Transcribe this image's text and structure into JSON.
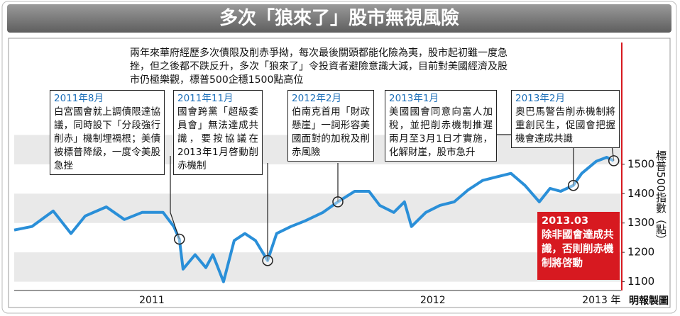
{
  "title": "多次「狼來了」股市無視風險",
  "intro": "兩年來華府經歷多次債限及削赤爭拗，每次最後關頭都能化險為夷，股市起初雖一度急挫，但之後都不跌反升，多次「狼來了」令投資者避險意識大減，目前對美國經濟及股市仍極樂觀，標普500企穩1500點高位",
  "source": "明報製圖",
  "chart_data": {
    "type": "line",
    "y_label": "標普500指數（點）",
    "x": [
      2011.01,
      2011.073,
      2011.149,
      2011.212,
      2011.263,
      2011.338,
      2011.402,
      2011.465,
      2011.54,
      2011.578,
      2011.598,
      2011.611,
      2011.654,
      2011.692,
      2011.717,
      2011.755,
      2011.793,
      2011.831,
      2011.869,
      2011.912,
      2011.944,
      2011.995,
      2012.045,
      2012.109,
      2012.162,
      2012.222,
      2012.273,
      2012.311,
      2012.361,
      2012.399,
      2012.424,
      2012.475,
      2012.525,
      2012.576,
      2012.626,
      2012.677,
      2012.727,
      2012.778,
      2012.828,
      2012.879,
      2012.917,
      2012.955,
      2013.0,
      2013.03,
      2013.081,
      2013.119,
      2013.144
    ],
    "series": [
      {
        "color": "#2a8fd8",
        "values": [
          1276,
          1288,
          1341,
          1264,
          1324,
          1355,
          1312,
          1336,
          1336,
          1288,
          1245,
          1143,
          1192,
          1148,
          1192,
          1100,
          1240,
          1264,
          1240,
          1172,
          1264,
          1288,
          1307,
          1336,
          1372,
          1408,
          1408,
          1360,
          1336,
          1372,
          1288,
          1336,
          1360,
          1372,
          1413,
          1445,
          1457,
          1469,
          1428,
          1372,
          1418,
          1408,
          1428,
          1469,
          1510,
          1524,
          1512
        ]
      }
    ],
    "xlim": [
      2011.01,
      2013.17
    ],
    "ylim": [
      1070,
      1915
    ],
    "xticks": [
      {
        "value": 2011.5,
        "label": "2011"
      },
      {
        "value": 2012.5,
        "label": "2012"
      },
      {
        "value": 2013.1,
        "label": "2013 年"
      }
    ],
    "yticks": [
      1100,
      1200,
      1300,
      1400,
      1500
    ],
    "annotations": [
      {
        "date": "2011年8月",
        "text": "白宮國會就上調債限達協議，同時設下「分段強行削赤」機制埋禍根；美債被標普降級，一度令美股急挫"
      },
      {
        "date": "2011年11月",
        "text": "國會跨黨「超級委員會」無法達成共識，要按協議在2013年1月啓動削赤機制"
      },
      {
        "date": "2012年2月",
        "text": "伯南克首用「財政懸崖」一詞形容美國面對的加稅及削赤風險"
      },
      {
        "date": "2013年1月",
        "text": "美國國會同意向富人加稅，並把削赤機制推遲兩月至3月1日才實施，化解財崖，股市急升"
      },
      {
        "date": "2013年2月",
        "text": "奧巴馬警告削赤機制將重創民生，促國會把握機會達成共識"
      }
    ],
    "alert": {
      "date": "2013.03",
      "text": "除非國會達成共識，否則削赤機制將啓動",
      "color": "#d71920"
    }
  }
}
